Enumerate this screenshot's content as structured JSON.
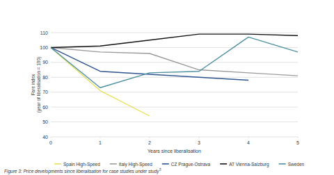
{
  "chart_data": {
    "type": "line",
    "xlabel": "Years since liberalisation",
    "ylabel": [
      "Fare index",
      "(year of liberalisation = 100)"
    ],
    "caption": "Figure 3: Price developments since liberalisation for case studies under study",
    "caption_footnote": "5",
    "x": [
      0,
      1,
      2,
      3,
      4,
      5
    ],
    "xlim": [
      0,
      5
    ],
    "xticks": [
      0,
      1,
      2,
      3,
      4,
      5
    ],
    "ylim": [
      40,
      110
    ],
    "yticks": [
      40,
      50,
      60,
      70,
      80,
      90,
      100,
      110
    ],
    "grid": true,
    "legend": "bottom",
    "series": [
      {
        "name": "Spain High-Speed",
        "color": "#e8e05a",
        "values": [
          100,
          71,
          54,
          null,
          null,
          null
        ]
      },
      {
        "name": "Italy High-Speed",
        "color": "#9a9a9a",
        "values": [
          100,
          97,
          96,
          85,
          83,
          81
        ]
      },
      {
        "name": "CZ Prague-Ostrava",
        "color": "#2e5490",
        "values": [
          100,
          84,
          82,
          80,
          78,
          null
        ]
      },
      {
        "name": "AT Vienna-Salzburg",
        "color": "#111111",
        "values": [
          100,
          101,
          105,
          109,
          109,
          108
        ]
      },
      {
        "name": "Sweden",
        "color": "#4c8fa0",
        "values": [
          100,
          73,
          83,
          84,
          107,
          97
        ]
      }
    ]
  }
}
